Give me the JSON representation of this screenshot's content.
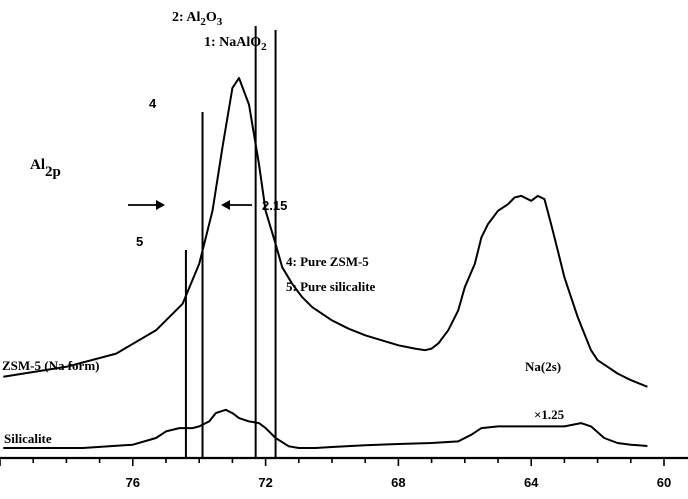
{
  "chart_data": {
    "type": "line",
    "title": "",
    "xlabel": "",
    "ylabel": "",
    "x_reversed": true,
    "xlim": [
      80,
      60
    ],
    "x_ticks": [
      76,
      72,
      68,
      64,
      60
    ],
    "x_tick_labels": [
      "76",
      "72",
      "68",
      "64",
      "60"
    ],
    "grid": false,
    "legend": "none",
    "series": [
      {
        "name": "ZSM-5 (Na form)",
        "x": [
          79.9,
          78.0,
          76.5,
          75.3,
          74.5,
          74.0,
          73.6,
          73.3,
          73.0,
          72.8,
          72.5,
          72.2,
          72.0,
          71.7,
          71.5,
          71.2,
          70.9,
          70.6,
          70.3,
          70.0,
          69.5,
          69.0,
          68.5,
          68.0,
          67.5,
          67.2,
          67.0,
          66.8,
          66.5,
          66.2,
          66.0,
          65.7,
          65.5,
          65.3,
          65.0,
          64.7,
          64.5,
          64.3,
          64.1,
          64.0,
          63.8,
          63.6,
          63.4,
          63.2,
          63.0,
          62.8,
          62.6,
          62.4,
          62.2,
          62.0,
          61.7,
          61.4,
          61.0,
          60.5
        ],
        "y": [
          10,
          13,
          17,
          24,
          32,
          44,
          60,
          79,
          97,
          100,
          92,
          74,
          60,
          50,
          43,
          38,
          34,
          31,
          29,
          27,
          24.5,
          22.5,
          21,
          19.5,
          18.5,
          18,
          18.5,
          20,
          24,
          30,
          37,
          44,
          52,
          56,
          60,
          62,
          64,
          64.5,
          63.5,
          63,
          64.5,
          63.5,
          56,
          48,
          40,
          34,
          28,
          23,
          18,
          15,
          13,
          11,
          9,
          7
        ]
      },
      {
        "name": "Silicalite",
        "x": [
          79.9,
          77.5,
          76.0,
          75.3,
          75.0,
          74.6,
          74.2,
          74.0,
          73.7,
          73.5,
          73.2,
          73.0,
          72.8,
          72.5,
          72.2,
          72.0,
          71.7,
          71.3,
          71.0,
          70.5,
          70.0,
          69.0,
          68.0,
          67.0,
          66.2,
          65.8,
          65.5,
          65.0,
          64.5,
          64.0,
          63.5,
          63.0,
          62.5,
          62.2,
          61.8,
          61.4,
          61.0,
          60.5
        ],
        "y": [
          0,
          0,
          1,
          3,
          5,
          6,
          6,
          6.5,
          8,
          10.5,
          11.5,
          10.5,
          9,
          8,
          7.5,
          6,
          3,
          0.5,
          0,
          0,
          0.3,
          0.8,
          1.2,
          1.5,
          2,
          4,
          6,
          6.5,
          6.5,
          6.5,
          6.5,
          6.5,
          7.5,
          6.5,
          3,
          1.5,
          1,
          0.6
        ]
      }
    ],
    "reference_lines": [
      {
        "label": "1: NaAlO2",
        "x": 71.7
      },
      {
        "label": "2: Al2O3",
        "x": 72.3
      },
      {
        "label": "4",
        "x": 73.9
      },
      {
        "label": "5",
        "x": 74.4
      }
    ],
    "annotations": {
      "ref_2_prefix": "2: Al",
      "ref_2_sub_a": "2",
      "ref_2_mid": "O",
      "ref_2_sub_b": "3",
      "ref_1_prefix": "1: NaAlO",
      "ref_1_sub": "2",
      "ref_4": "4",
      "ref_5": "5",
      "region_main": "Al",
      "region_sub": "2p",
      "fwhm": "2.15",
      "legend_4": "4: Pure ZSM-5",
      "legend_5": "5: Pure silicalite",
      "label_zsm5": "ZSM-5 (Na form)",
      "label_silicalite": "Silicalite",
      "label_na2s": "Na(2s)",
      "label_scale": "×1.25"
    }
  }
}
